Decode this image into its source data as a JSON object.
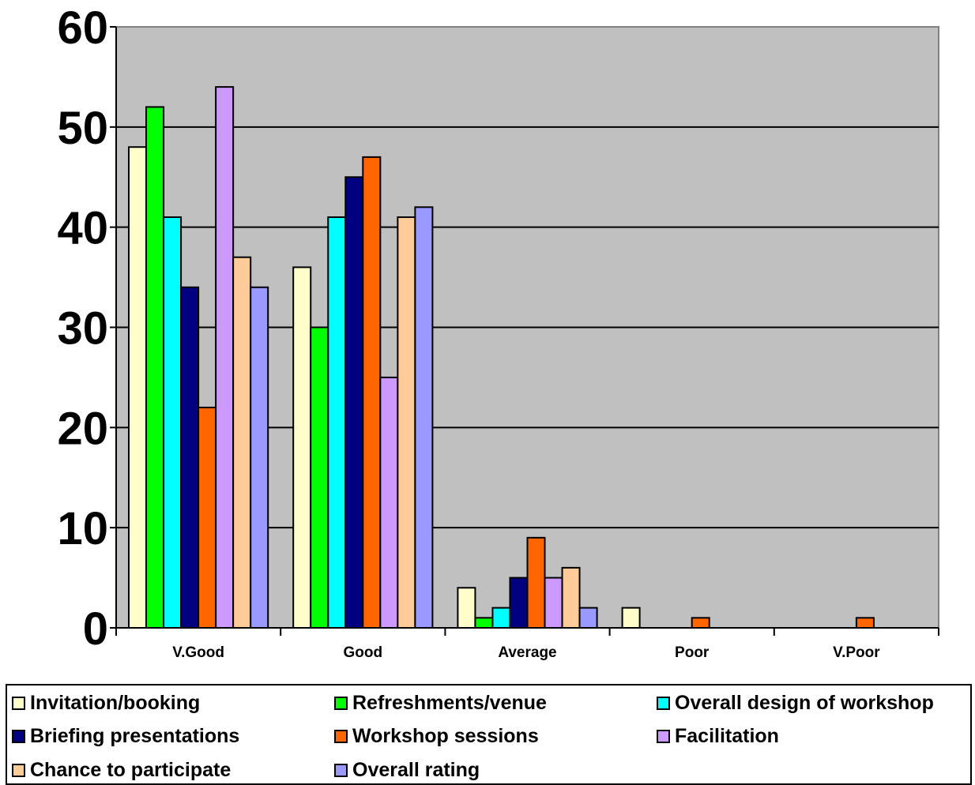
{
  "chart_data": {
    "type": "bar",
    "categories": [
      "V.Good",
      "Good",
      "Average",
      "Poor",
      "V.Poor"
    ],
    "series": [
      {
        "name": "Invitation/booking",
        "color": "#FFFFCC",
        "values": [
          48,
          36,
          4,
          2,
          0
        ]
      },
      {
        "name": "Refreshments/venue",
        "color": "#00FF00",
        "values": [
          52,
          30,
          1,
          0,
          0
        ]
      },
      {
        "name": "Overall design of workshop",
        "color": "#00FFFF",
        "values": [
          41,
          41,
          2,
          0,
          0
        ]
      },
      {
        "name": "Briefing presentations",
        "color": "#000080",
        "values": [
          34,
          45,
          5,
          0,
          0
        ]
      },
      {
        "name": "Workshop sessions",
        "color": "#FF6600",
        "values": [
          22,
          47,
          9,
          1,
          1
        ]
      },
      {
        "name": "Facilitation",
        "color": "#CC99FF",
        "values": [
          54,
          25,
          5,
          0,
          0
        ]
      },
      {
        "name": "Chance to participate",
        "color": "#FFCC99",
        "values": [
          37,
          41,
          6,
          0,
          0
        ]
      },
      {
        "name": "Overall rating",
        "color": "#9999FF",
        "values": [
          34,
          42,
          2,
          0,
          0
        ]
      }
    ],
    "yticks": [
      "0",
      "10",
      "20",
      "30",
      "40",
      "50",
      "60"
    ],
    "ylim": [
      0,
      60
    ],
    "grid": true,
    "plot_background": "#C0C0C0",
    "legend_position": "bottom"
  }
}
